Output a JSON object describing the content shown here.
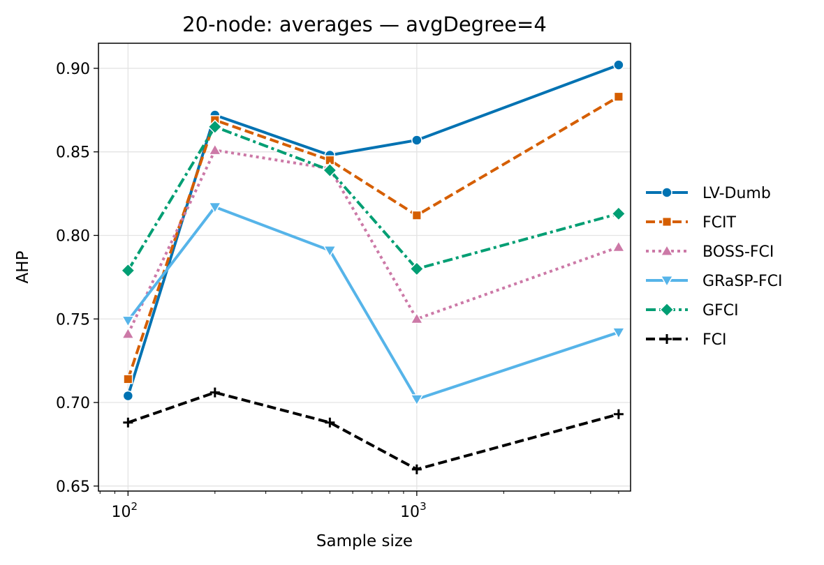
{
  "chart_data": {
    "type": "line",
    "title": "20-node: averages — avgDegree=4",
    "xlabel": "Sample size",
    "ylabel": "AHP",
    "xscale": "log",
    "x": [
      100,
      200,
      500,
      1000,
      5000
    ],
    "xlim": [
      79,
      5500
    ],
    "ylim": [
      0.647,
      0.915
    ],
    "yticks": [
      0.65,
      0.7,
      0.75,
      0.8,
      0.85,
      0.9
    ],
    "ytick_labels": [
      "0.65",
      "0.70",
      "0.75",
      "0.80",
      "0.85",
      "0.90"
    ],
    "xticks": [
      {
        "value": 100,
        "base": "10",
        "exp": "2"
      },
      {
        "value": 1000,
        "base": "10",
        "exp": "3"
      }
    ],
    "grid": true,
    "legend_position": "outside-right",
    "series": [
      {
        "name": "LV-Dumb",
        "color": "#0072b2",
        "dash": "solid",
        "marker": "circle",
        "values": [
          0.704,
          0.872,
          0.848,
          0.857,
          0.902
        ]
      },
      {
        "name": "FCIT",
        "color": "#d55e00",
        "dash": "dashed",
        "marker": "square",
        "values": [
          0.714,
          0.869,
          0.845,
          0.812,
          0.883
        ]
      },
      {
        "name": "BOSS-FCI",
        "color": "#cc79a7",
        "dash": "dotted",
        "marker": "triangle-up",
        "values": [
          0.741,
          0.851,
          0.84,
          0.75,
          0.793
        ]
      },
      {
        "name": "GRaSP-FCI",
        "color": "#56b4e9",
        "dash": "solid",
        "marker": "triangle-down",
        "values": [
          0.749,
          0.817,
          0.791,
          0.702,
          0.742
        ]
      },
      {
        "name": "GFCI",
        "color": "#009e73",
        "dash": "dashdot",
        "marker": "diamond",
        "values": [
          0.779,
          0.865,
          0.839,
          0.78,
          0.813
        ]
      },
      {
        "name": "FCI",
        "color": "#000000",
        "dash": "dashed",
        "marker": "plus",
        "values": [
          0.688,
          0.706,
          0.688,
          0.66,
          0.693
        ]
      }
    ]
  }
}
